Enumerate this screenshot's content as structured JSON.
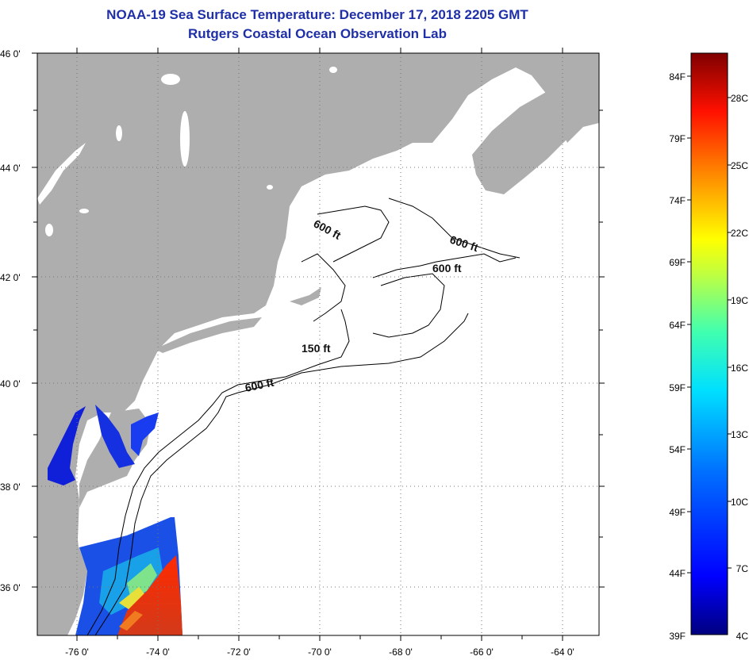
{
  "header": {
    "title": "NOAA-19 Sea Surface Temperature:  December 17, 2018 2205 GMT",
    "subtitle": "Rutgers Coastal Ocean Observation Lab"
  },
  "map": {
    "lat_ticks": [
      "46 0'",
      "44 0'",
      "42 0'",
      "40 0'",
      "38 0'",
      "36 0'"
    ],
    "lon_ticks": [
      "-76 0'",
      "-74 0'",
      "-72 0'",
      "-70 0'",
      "-68 0'",
      "-66 0'",
      "-64 0'"
    ],
    "contours": [
      "600 ft",
      "600 ft",
      "600 ft",
      "150 ft",
      "600 ft"
    ],
    "colors": {
      "land": "#aeaeae",
      "ocean_nodata": "#ffffff",
      "contour": "#000000",
      "grid": "#777777"
    }
  },
  "color_scale": {
    "fahrenheit": [
      "84F",
      "79F",
      "74F",
      "69F",
      "64F",
      "59F",
      "54F",
      "49F",
      "44F",
      "39F"
    ],
    "celsius": [
      "28C",
      "25C",
      "22C",
      "19C",
      "16C",
      "13C",
      "10C",
      "7C",
      "4C"
    ],
    "gradient": [
      "#00007f",
      "#0000ff",
      "#0080ff",
      "#00ffff",
      "#80ff80",
      "#ffff00",
      "#ff8000",
      "#ff0000",
      "#7f0000"
    ]
  }
}
